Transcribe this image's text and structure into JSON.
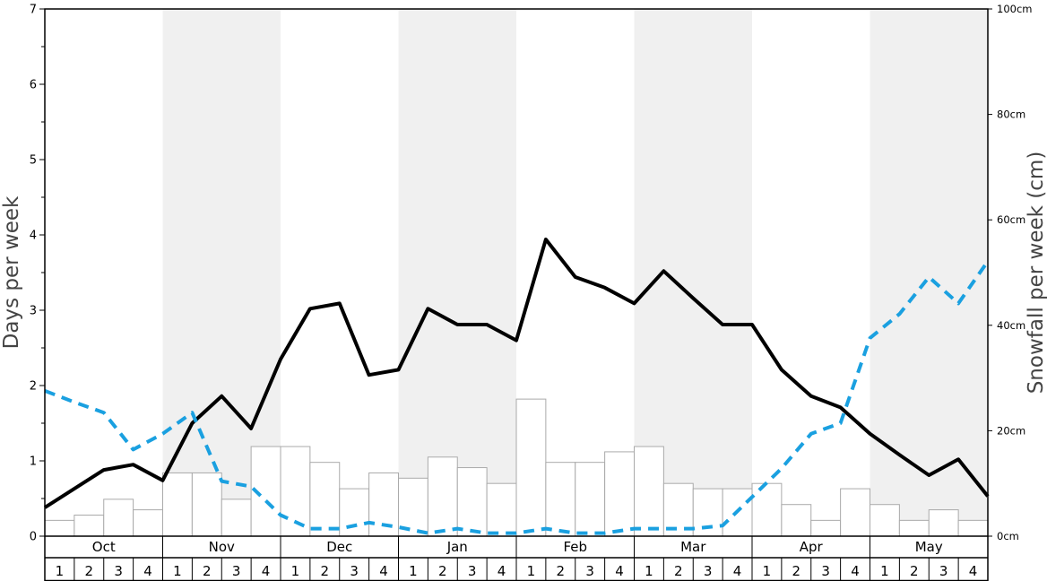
{
  "chart_data": {
    "type": "bar+line",
    "ylabel_left": "Days per week",
    "ylabel_right": "Snowfall per week (cm)",
    "left_ticks": [
      "0",
      "1",
      "2",
      "3",
      "4",
      "5",
      "6",
      "7"
    ],
    "right_ticks": [
      "0cm",
      "20cm",
      "40cm",
      "60cm",
      "80cm",
      "100cm"
    ],
    "ylim_left": [
      0,
      7
    ],
    "ylim_right": [
      0,
      100
    ],
    "months": [
      "Oct",
      "Nov",
      "Dec",
      "Jan",
      "Feb",
      "Mar",
      "Apr",
      "May"
    ],
    "week_labels": [
      "1",
      "2",
      "3",
      "4"
    ],
    "shaded_months": [
      "Nov",
      "Jan",
      "Mar",
      "May"
    ],
    "snowfall_bars_cm": [
      3,
      4,
      7,
      5,
      12,
      12,
      7,
      17,
      17,
      14,
      9,
      12,
      11,
      15,
      13,
      10,
      26,
      14,
      14,
      16,
      17,
      10,
      9,
      9,
      10,
      6,
      3,
      9,
      6,
      3,
      5,
      3
    ],
    "series": [
      {
        "style": "solid-black-line",
        "values": [
          0.38,
          0.63,
          0.88,
          0.95,
          0.74,
          1.5,
          1.86,
          1.43,
          2.35,
          3.02,
          3.09,
          2.14,
          2.21,
          3.02,
          2.81,
          2.81,
          2.6,
          3.94,
          3.44,
          3.3,
          3.09,
          3.52,
          3.16,
          2.81,
          2.81,
          2.21,
          1.86,
          1.71,
          1.36,
          1.08,
          0.81,
          1.02,
          0.53
        ]
      },
      {
        "style": "dashed-blue-line",
        "values": [
          1.93,
          1.78,
          1.64,
          1.15,
          1.36,
          1.64,
          0.73,
          0.66,
          0.28,
          0.1,
          0.1,
          0.18,
          0.12,
          0.04,
          0.1,
          0.04,
          0.04,
          0.1,
          0.04,
          0.04,
          0.1,
          0.1,
          0.1,
          0.14,
          0.52,
          0.9,
          1.36,
          1.5,
          2.63,
          2.95,
          3.44,
          3.09,
          3.65
        ]
      }
    ],
    "colors": {
      "line": "#000000",
      "dashed": "#1aa0e0",
      "shade": "#f0f0f0",
      "bar_fill": "#ffffff",
      "bar_stroke": "#aaaaaa"
    }
  }
}
